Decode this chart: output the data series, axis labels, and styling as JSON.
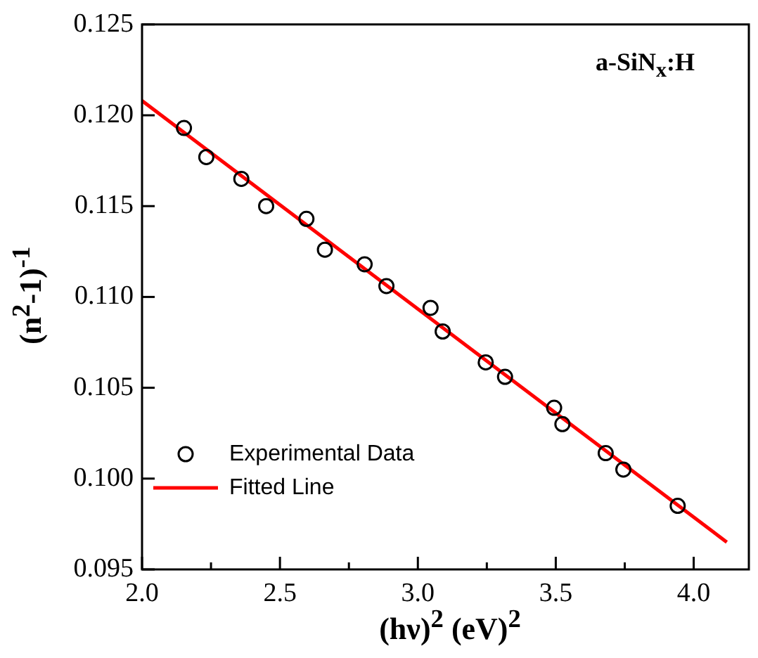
{
  "chart_data": {
    "type": "scatter",
    "xlabel": "(hν)$^{2}$ (eV)$^{2}$",
    "ylabel": "(n$^{2}$-1)$^{-1}$",
    "annotations": [
      "a-SiN$_{x}$:H"
    ],
    "xlim": [
      2.0,
      4.2
    ],
    "xticks": [
      {
        "value": 2,
        "label": "2.0"
      },
      {
        "value": 2.25,
        "label": null
      },
      2.5,
      {
        "value": 2.75,
        "label": null
      },
      {
        "value": 3,
        "label": "3.0"
      },
      {
        "value": 3.25,
        "label": null
      },
      3.5,
      {
        "value": 3.75,
        "label": null
      },
      {
        "value": 4,
        "label": "4.0"
      }
    ],
    "ylim": [
      0.095,
      0.125
    ],
    "yticks": [
      0.095,
      {
        "value": 0.1,
        "label": "0.100"
      },
      0.105,
      {
        "value": 0.11,
        "label": "0.110"
      },
      0.115,
      {
        "value": 0.12,
        "label": "0.120"
      },
      0.125
    ],
    "grid": false,
    "legend": "bottom left",
    "series": [
      {
        "name": "Experimental Data",
        "marker": "circle",
        "color": "#000000",
        "x": [
          2.152,
          2.233,
          2.36,
          2.45,
          2.596,
          2.663,
          2.807,
          2.886,
          3.046,
          3.09,
          3.246,
          3.316,
          3.494,
          3.524,
          3.681,
          3.745,
          3.942
        ],
        "values": [
          0.1193,
          0.1177,
          0.1165,
          0.115,
          0.1143,
          0.1126,
          0.1118,
          0.1106,
          0.1094,
          0.1081,
          0.1064,
          0.1056,
          0.1039,
          0.103,
          0.1014,
          0.1005,
          0.0985
        ]
      },
      {
        "name": "Fitted Line",
        "type": "line",
        "marker": "none",
        "line_style": "solid",
        "color": "#ff0000",
        "x": [
          2.0,
          4.12
        ],
        "values": [
          0.1208,
          0.0965
        ]
      }
    ]
  }
}
